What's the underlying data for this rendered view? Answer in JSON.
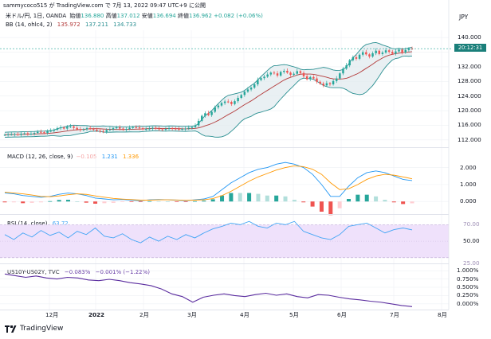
{
  "header": {
    "text": "sammycoco515 が TradingView.com で 7月 13, 2022 09:47 UTC+9 に公開"
  },
  "main_legend": {
    "symbol": "米ドル/円, 1日, OANDA",
    "open_label": "始値",
    "open": "136.880",
    "high_label": "高値",
    "high": "137.012",
    "low_label": "安値",
    "low": "136.694",
    "close_label": "終値",
    "close": "136.962",
    "change": "+0.082 (+0.06%)"
  },
  "bb_legend": {
    "label": "BB (14, ohlc4, 2)",
    "basis": "135.972",
    "upper": "137.211",
    "lower": "134.733"
  },
  "macd_legend": {
    "label": "MACD (12, 26, close, 9)",
    "hist": "−0.105",
    "macd": "1.231",
    "signal": "1.336"
  },
  "rsi_legend": {
    "label": "RSI (14, close)",
    "value": "63.72"
  },
  "tvc_legend": {
    "label": "US10Y-US02Y, TVC",
    "value": "−0.083%",
    "change": "−0.001% (−1.22%)"
  },
  "price_axis": {
    "currency": "JPY",
    "labels": [
      "140.000",
      "136.000",
      "132.000",
      "128.000",
      "124.000",
      "120.000",
      "116.000",
      "112.000"
    ],
    "badge": "20:12:31"
  },
  "macd_axis": {
    "labels": [
      "2.000",
      "1.000",
      "0.000"
    ]
  },
  "rsi_axis": {
    "labels": [
      "70.00",
      "50.00",
      "25.00"
    ]
  },
  "tvc_axis": {
    "labels": [
      "1.000%",
      "0.750%",
      "0.500%",
      "0.250%",
      "0.000%"
    ]
  },
  "time_axis": {
    "labels": [
      "12月",
      "2022",
      "2月",
      "3月",
      "4月",
      "5月",
      "6月",
      "7月",
      "8月"
    ]
  },
  "footer": {
    "brand": "TradingView"
  },
  "colors": {
    "up": "#26a69a",
    "down": "#ef5350",
    "band": "#2a8f91",
    "basis": "#b33a3a",
    "macd": "#2196f3",
    "signal": "#ff9800",
    "rsi": "#42a5f5",
    "rsi_band": "#efe1fb",
    "tvc": "#5b2d9f"
  },
  "chart_data": [
    {
      "type": "candlestick",
      "title": "米ドル/円, 1日, OANDA",
      "ylabel": "JPY",
      "ylim": [
        110,
        142
      ],
      "series": [
        {
          "name": "USDJPY close",
          "values": [
            113.4,
            113.5,
            113.5,
            113.6,
            113.4,
            113.7,
            113.8,
            113.6,
            113.7,
            113.9,
            114.2,
            114.1,
            113.9,
            114.4,
            114.5,
            114.8,
            115.2,
            115.4,
            115.1,
            115.6,
            115.7,
            115.3,
            114.9,
            114.7,
            114.9,
            115.2,
            115.0,
            114.8,
            114.5,
            114.4,
            114.2,
            114.7,
            114.9,
            115.2,
            115.4,
            115.1,
            114.8,
            115.0,
            115.3,
            115.5,
            115.4,
            115.2,
            114.9,
            115.0,
            115.1,
            115.3,
            115.1,
            114.9,
            114.8,
            115.0,
            115.2,
            115.1,
            115.0,
            114.9,
            115.0,
            115.1,
            115.3,
            115.5,
            116.0,
            117.2,
            118.6,
            119.3,
            118.8,
            119.7,
            120.9,
            121.4,
            122.1,
            122.5,
            122.4,
            121.8,
            122.6,
            123.5,
            124.3,
            125.2,
            125.8,
            126.3,
            127.2,
            128.4,
            128.9,
            129.3,
            129.9,
            130.4,
            130.2,
            129.6,
            130.6,
            130.9,
            130.4,
            129.8,
            130.1,
            130.8,
            130.3,
            129.4,
            128.6,
            129.2,
            128.8,
            127.9,
            127.4,
            126.9,
            127.5,
            127.2,
            128.1,
            128.8,
            130.2,
            131.5,
            132.4,
            133.8,
            134.6,
            134.2,
            135.3,
            136.0,
            135.4,
            134.8,
            135.7,
            136.4,
            135.5,
            135.9,
            136.5,
            136.1,
            135.6,
            136.2,
            136.7,
            135.9,
            136.6,
            137.0,
            136.96
          ]
        }
      ],
      "xlabels": [
        "12月",
        "2022",
        "2月",
        "3月",
        "4月",
        "5月",
        "6月",
        "7月",
        "8月"
      ]
    },
    {
      "type": "line",
      "title": "MACD (12, 26, close, 9)",
      "ylim": [
        -0.6,
        2.4
      ],
      "series": [
        {
          "name": "MACD",
          "values": [
            0.5,
            0.45,
            0.35,
            0.3,
            0.25,
            0.3,
            0.42,
            0.5,
            0.45,
            0.35,
            0.2,
            0.15,
            0.1,
            0.12,
            0.08,
            0.05,
            0.1,
            0.12,
            0.1,
            0.08,
            0.05,
            0.1,
            0.15,
            0.3,
            0.7,
            1.1,
            1.4,
            1.7,
            1.9,
            2.0,
            2.2,
            2.3,
            2.2,
            2.0,
            1.6,
            1.0,
            0.3,
            0.3,
            0.9,
            1.4,
            1.7,
            1.8,
            1.7,
            1.5,
            1.3,
            1.23
          ]
        },
        {
          "name": "Signal",
          "values": [
            0.55,
            0.5,
            0.45,
            0.38,
            0.3,
            0.28,
            0.33,
            0.4,
            0.45,
            0.42,
            0.33,
            0.25,
            0.18,
            0.14,
            0.11,
            0.08,
            0.08,
            0.1,
            0.1,
            0.09,
            0.07,
            0.08,
            0.1,
            0.17,
            0.35,
            0.6,
            0.9,
            1.2,
            1.45,
            1.65,
            1.85,
            2.0,
            2.1,
            2.05,
            1.9,
            1.6,
            1.1,
            0.7,
            0.75,
            1.0,
            1.3,
            1.5,
            1.6,
            1.55,
            1.45,
            1.336
          ]
        }
      ]
    },
    {
      "type": "line",
      "title": "RSI (14, close)",
      "ylim": [
        25,
        80
      ],
      "series": [
        {
          "name": "RSI",
          "values": [
            58,
            52,
            60,
            55,
            63,
            57,
            61,
            54,
            62,
            58,
            66,
            56,
            54,
            59,
            52,
            48,
            55,
            50,
            56,
            52,
            58,
            54,
            60,
            65,
            68,
            72,
            70,
            74,
            68,
            66,
            72,
            70,
            74,
            62,
            58,
            54,
            52,
            58,
            68,
            70,
            72,
            66,
            60,
            64,
            66,
            63.72
          ]
        }
      ]
    },
    {
      "type": "line",
      "title": "US10Y-US02Y, TVC",
      "ylim": [
        -0.1,
        1.1
      ],
      "series": [
        {
          "name": "US10Y-US02Y",
          "values": [
            0.9,
            0.85,
            0.8,
            0.84,
            0.78,
            0.75,
            0.8,
            0.78,
            0.72,
            0.7,
            0.74,
            0.7,
            0.64,
            0.6,
            0.55,
            0.45,
            0.3,
            0.22,
            0.05,
            0.2,
            0.26,
            0.3,
            0.25,
            0.22,
            0.28,
            0.32,
            0.26,
            0.3,
            0.22,
            0.18,
            0.28,
            0.26,
            0.2,
            0.15,
            0.12,
            0.08,
            0.05,
            0.0,
            -0.05,
            -0.083
          ]
        }
      ]
    }
  ]
}
